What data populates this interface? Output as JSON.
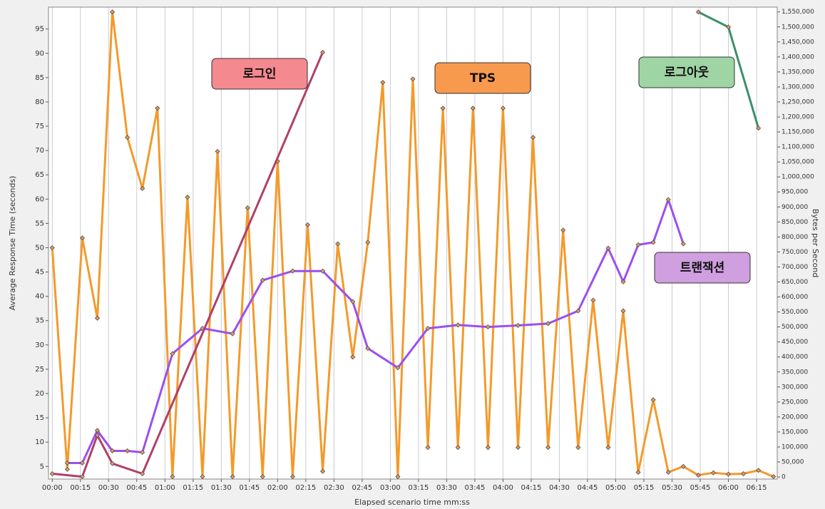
{
  "chart_data": {
    "type": "line",
    "xlabel": "Elapsed scenario time mm:ss",
    "ylabel": "Average Response Time (seconds)",
    "y2label": "Bytes per Second",
    "xlim": [
      -2,
      386
    ],
    "ylim": [
      2.4,
      99.5
    ],
    "y2lim": [
      -7000,
      1566000
    ],
    "grid": true,
    "xticks": [
      {
        "value": 0,
        "label": "00:00"
      },
      {
        "value": 15,
        "label": "00:15"
      },
      {
        "value": 30,
        "label": "00:30"
      },
      {
        "value": 45,
        "label": "00:45"
      },
      {
        "value": 60,
        "label": "01:00"
      },
      {
        "value": 75,
        "label": "01:15"
      },
      {
        "value": 90,
        "label": "01:30"
      },
      {
        "value": 105,
        "label": "01:45"
      },
      {
        "value": 120,
        "label": "02:00"
      },
      {
        "value": 135,
        "label": "02:15"
      },
      {
        "value": 150,
        "label": "02:30"
      },
      {
        "value": 165,
        "label": "02:45"
      },
      {
        "value": 180,
        "label": "03:00"
      },
      {
        "value": 195,
        "label": "03:15"
      },
      {
        "value": 210,
        "label": "03:30"
      },
      {
        "value": 225,
        "label": "03:45"
      },
      {
        "value": 240,
        "label": "04:00"
      },
      {
        "value": 255,
        "label": "04:15"
      },
      {
        "value": 270,
        "label": "04:30"
      },
      {
        "value": 285,
        "label": "04:45"
      },
      {
        "value": 300,
        "label": "05:00"
      },
      {
        "value": 315,
        "label": "05:15"
      },
      {
        "value": 330,
        "label": "05:30"
      },
      {
        "value": 345,
        "label": "05:45"
      },
      {
        "value": 360,
        "label": "06:00"
      },
      {
        "value": 375,
        "label": "06:15"
      }
    ],
    "yticks": [
      5,
      10,
      15,
      20,
      25,
      30,
      35,
      40,
      45,
      50,
      55,
      60,
      65,
      70,
      75,
      80,
      85,
      90,
      95
    ],
    "y2ticks": [
      0,
      {
        "value": 50000,
        "label": "50,000"
      },
      {
        "value": 100000,
        "label": "100,000"
      },
      {
        "value": 150000,
        "label": "150,000"
      },
      {
        "value": 200000,
        "label": "200,000"
      },
      {
        "value": 250000,
        "label": "250,000"
      },
      {
        "value": 300000,
        "label": "300,000"
      },
      {
        "value": 350000,
        "label": "350,000"
      },
      {
        "value": 400000,
        "label": "400,000"
      },
      {
        "value": 450000,
        "label": "450,000"
      },
      {
        "value": 500000,
        "label": "500,000"
      },
      {
        "value": 550000,
        "label": "550,000"
      },
      {
        "value": 600000,
        "label": "600,000"
      },
      {
        "value": 650000,
        "label": "650,000"
      },
      {
        "value": 700000,
        "label": "700,000"
      },
      {
        "value": 750000,
        "label": "750,000"
      },
      {
        "value": 800000,
        "label": "800,000"
      },
      {
        "value": 850000,
        "label": "850,000"
      },
      {
        "value": 900000,
        "label": "900,000"
      },
      {
        "value": 950000,
        "label": "950,000"
      },
      {
        "value": 1000000,
        "label": "1,000,000"
      },
      {
        "value": 1050000,
        "label": "1,050,000"
      },
      {
        "value": 1100000,
        "label": "1,100,000"
      },
      {
        "value": 1150000,
        "label": "1,150,000"
      },
      {
        "value": 1200000,
        "label": "1,200,000"
      },
      {
        "value": 1250000,
        "label": "1,250,000"
      },
      {
        "value": 1300000,
        "label": "1,300,000"
      },
      {
        "value": 1350000,
        "label": "1,350,000"
      },
      {
        "value": 1400000,
        "label": "1,400,000"
      },
      {
        "value": 1450000,
        "label": "1,450,000"
      },
      {
        "value": 1500000,
        "label": "1,500,000"
      },
      {
        "value": 1550000,
        "label": "1,550,000"
      }
    ],
    "series": [
      {
        "color": "#f39a2b",
        "x": [
          0,
          8,
          16,
          24,
          32,
          40,
          48,
          56,
          64,
          72,
          80,
          88,
          96,
          104,
          112,
          120,
          128,
          136,
          144,
          152,
          160,
          168,
          176,
          184,
          192,
          200,
          208,
          216,
          224,
          232,
          240,
          248,
          256,
          264,
          272,
          280,
          288,
          296,
          304,
          312,
          320,
          328,
          336,
          344,
          352,
          360,
          368,
          376,
          384
        ],
        "values": [
          50,
          4.4,
          52,
          35.5,
          98.5,
          72.7,
          62.2,
          78.7,
          2.9,
          60.4,
          2.9,
          69.8,
          2.9,
          58.2,
          2.9,
          67.8,
          2.9,
          54.7,
          4,
          50.8,
          27.5,
          51.1,
          84,
          2.9,
          84.7,
          8.9,
          78.7,
          8.9,
          78.7,
          8.9,
          78.7,
          8.9,
          72.7,
          8.9,
          53.6,
          8.9,
          39.2,
          8.9,
          37,
          3.8,
          18.7,
          3.8,
          5,
          3.2,
          3.7,
          3.4,
          3.5,
          4.2,
          2.9
        ]
      },
      {
        "color": "#9b4ff0",
        "x": [
          8,
          16,
          24,
          32,
          40,
          48,
          64,
          80,
          96,
          112,
          128,
          144,
          160,
          168,
          184,
          200,
          216,
          232,
          248,
          264,
          280,
          296,
          304,
          312,
          320,
          328,
          336
        ],
        "values": [
          5.7,
          5.7,
          12.4,
          8.2,
          8.2,
          7.9,
          28.2,
          33.4,
          32.3,
          43.3,
          45.2,
          45.2,
          38.9,
          29.3,
          25.3,
          33.4,
          34.1,
          33.7,
          34,
          34.4,
          37,
          49.9,
          43,
          50.6,
          51.1,
          59.9,
          50.8
        ]
      },
      {
        "color": "#b0406a",
        "x": [
          0,
          16,
          24,
          32,
          48,
          144
        ],
        "values": [
          3.5,
          2.9,
          11.4,
          5.6,
          3.5,
          90.2
        ]
      },
      {
        "color": "#3a8f6a",
        "x": [
          344,
          360,
          376
        ],
        "values": [
          98.5,
          95.4,
          74.6
        ]
      }
    ],
    "annotations": [
      {
        "text": "로그인",
        "color": "#f4898f"
      },
      {
        "text": "TPS",
        "color": "#f79a4e"
      },
      {
        "text": "로그아웃",
        "color": "#9fd4a4"
      },
      {
        "text": "트랜잭션",
        "color": "#cf9fe0"
      }
    ]
  }
}
